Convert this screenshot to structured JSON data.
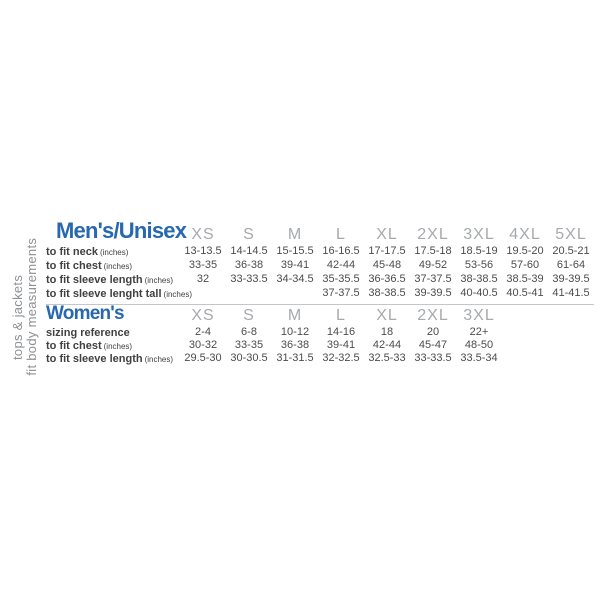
{
  "colors": {
    "accent": "#2768AE",
    "size-gray": "#A7A9AC",
    "label-dark": "#414042",
    "value-gray": "#4C4C4E",
    "vertical-gray": "#8E9093",
    "divider": "#C4C6C8"
  },
  "sidebar": {
    "line1": "tops & jackets",
    "line2": "to fit body measurements"
  },
  "mens": {
    "title": "Men's/Unisex",
    "sizes": [
      "XS",
      "S",
      "M",
      "L",
      "XL",
      "2XL",
      "3XL",
      "4XL",
      "5XL"
    ],
    "rows": [
      {
        "label": "to fit neck",
        "unit": "(inches)",
        "values": [
          "13-13.5",
          "14-14.5",
          "15-15.5",
          "16-16.5",
          "17-17.5",
          "17.5-18",
          "18.5-19",
          "19.5-20",
          "20.5-21"
        ]
      },
      {
        "label": "to fit chest",
        "unit": "(inches)",
        "values": [
          "33-35",
          "36-38",
          "39-41",
          "42-44",
          "45-48",
          "49-52",
          "53-56",
          "57-60",
          "61-64"
        ]
      },
      {
        "label": "to fit sleeve length",
        "unit": "(inches)",
        "values": [
          "32",
          "33-33.5",
          "34-34.5",
          "35-35.5",
          "36-36.5",
          "37-37.5",
          "38-38.5",
          "38.5-39",
          "39-39.5"
        ]
      },
      {
        "label": "to fit sleeve lenght tall",
        "unit": "(inches)",
        "values": [
          "",
          "",
          "",
          "37-37.5",
          "38-38.5",
          "39-39.5",
          "40-40.5",
          "40.5-41",
          "41-41.5"
        ]
      }
    ]
  },
  "womens": {
    "title": "Women's",
    "sizes": [
      "XS",
      "S",
      "M",
      "L",
      "XL",
      "2XL",
      "3XL"
    ],
    "rows": [
      {
        "label": "sizing reference",
        "unit": "",
        "values": [
          "2-4",
          "6-8",
          "10-12",
          "14-16",
          "18",
          "20",
          "22+"
        ]
      },
      {
        "label": "to fit chest",
        "unit": "(inches)",
        "values": [
          "30-32",
          "33-35",
          "36-38",
          "39-41",
          "42-44",
          "45-47",
          "48-50"
        ]
      },
      {
        "label": "to fit sleeve length",
        "unit": "(inches)",
        "values": [
          "29.5-30",
          "30-30.5",
          "31-31.5",
          "32-32.5",
          "32.5-33",
          "33-33.5",
          "33.5-34"
        ]
      }
    ]
  }
}
